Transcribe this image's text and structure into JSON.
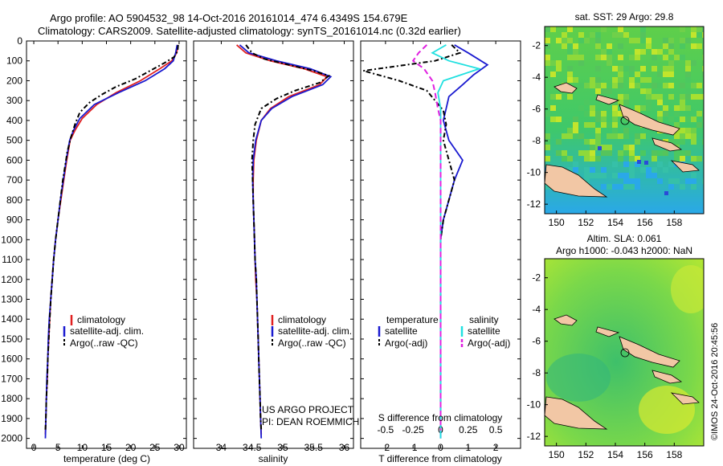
{
  "header": {
    "line1": "Argo profile: AO 5904532_98 14-Oct-2016 20161014_474 6.4349S 154.679E",
    "line2": "Climatology: CARS2009. Satellite-adjusted climatology: synTS_20161014.nc (0.32d earlier)"
  },
  "colors": {
    "climatology": "#e02020",
    "satellite": "#1a1ad0",
    "argo": "#000000",
    "sal_satellite": "#20e0e0",
    "sal_argo": "#e020e0"
  },
  "chart_data": [
    {
      "type": "line",
      "name": "temperature",
      "xlabel": "temperature (deg C)",
      "ylabel": "",
      "xlim": [
        -1.5,
        31.5
      ],
      "ylim": [
        2050,
        0
      ],
      "xticks": [
        0,
        5,
        10,
        15,
        20,
        25,
        30
      ],
      "yticks": [
        0,
        100,
        200,
        300,
        400,
        500,
        600,
        700,
        800,
        900,
        1000,
        1100,
        1200,
        1300,
        1400,
        1500,
        1600,
        1700,
        1800,
        1900,
        2000
      ],
      "series": [
        {
          "name": "climatology",
          "color": "#e02020",
          "dash": "",
          "points": [
            [
              29.8,
              20
            ],
            [
              29.5,
              60
            ],
            [
              28.5,
              100
            ],
            [
              26,
              140
            ],
            [
              22,
              200
            ],
            [
              17,
              260
            ],
            [
              13,
              320
            ],
            [
              10,
              390
            ],
            [
              8.5,
              450
            ],
            [
              7.5,
              500
            ],
            [
              6.8,
              600
            ],
            [
              6.2,
              700
            ],
            [
              5.6,
              800
            ],
            [
              5.0,
              900
            ],
            [
              4.5,
              1000
            ],
            [
              4.1,
              1100
            ],
            [
              3.8,
              1200
            ],
            [
              3.5,
              1300
            ],
            [
              3.3,
              1400
            ],
            [
              3.1,
              1500
            ],
            [
              2.9,
              1600
            ],
            [
              2.8,
              1700
            ],
            [
              2.6,
              1800
            ],
            [
              2.5,
              1900
            ],
            [
              2.4,
              1980
            ]
          ]
        },
        {
          "name": "satellite-adj. clim.",
          "color": "#1a1ad0",
          "dash": "",
          "points": [
            [
              29.6,
              20
            ],
            [
              29.3,
              60
            ],
            [
              28.8,
              100
            ],
            [
              27,
              140
            ],
            [
              23,
              200
            ],
            [
              17.5,
              260
            ],
            [
              12.5,
              320
            ],
            [
              9.5,
              390
            ],
            [
              8.2,
              450
            ],
            [
              7.4,
              500
            ],
            [
              6.7,
              600
            ],
            [
              6.1,
              700
            ],
            [
              5.5,
              800
            ],
            [
              5.0,
              900
            ],
            [
              4.5,
              1000
            ],
            [
              4.1,
              1100
            ],
            [
              3.8,
              1200
            ],
            [
              3.5,
              1300
            ],
            [
              3.2,
              1400
            ],
            [
              3.0,
              1500
            ],
            [
              2.9,
              1600
            ],
            [
              2.7,
              1700
            ],
            [
              2.6,
              1800
            ],
            [
              2.5,
              1900
            ],
            [
              2.4,
              2000
            ]
          ]
        },
        {
          "name": "Argo(..raw -QC)",
          "color": "#000000",
          "dash": "6,3,2,3",
          "points": [
            [
              29.8,
              20
            ],
            [
              29.7,
              50
            ],
            [
              29,
              80
            ],
            [
              27,
              110
            ],
            [
              24,
              150
            ],
            [
              21,
              190
            ],
            [
              17,
              230
            ],
            [
              14,
              270
            ],
            [
              11.5,
              310
            ],
            [
              9.5,
              360
            ],
            [
              8.5,
              420
            ],
            [
              7.6,
              490
            ],
            [
              6.9,
              560
            ],
            [
              6.4,
              640
            ],
            [
              6.0,
              700
            ],
            [
              5.5,
              800
            ],
            [
              5.0,
              900
            ],
            [
              4.5,
              1000
            ],
            [
              4.1,
              1100
            ],
            [
              3.8,
              1200
            ],
            [
              3.5,
              1300
            ],
            [
              3.3,
              1400
            ],
            [
              3.1,
              1500
            ],
            [
              2.9,
              1600
            ],
            [
              2.8,
              1700
            ],
            [
              2.6,
              1800
            ],
            [
              2.5,
              1900
            ],
            [
              2.4,
              1960
            ]
          ]
        }
      ],
      "legend": [
        "climatology",
        "satellite-adj. clim.",
        "Argo(..raw -QC)"
      ]
    },
    {
      "type": "line",
      "name": "salinity",
      "xlabel": "salinity",
      "ylabel": "",
      "xlim": [
        33.55,
        36.15
      ],
      "ylim": [
        2050,
        0
      ],
      "xticks": [
        34,
        34.5,
        35,
        35.5,
        36
      ],
      "series": [
        {
          "name": "climatology",
          "color": "#e02020",
          "dash": "",
          "points": [
            [
              34.25,
              20
            ],
            [
              34.4,
              60
            ],
            [
              34.8,
              100
            ],
            [
              35.35,
              140
            ],
            [
              35.72,
              180
            ],
            [
              35.6,
              220
            ],
            [
              35.1,
              280
            ],
            [
              34.8,
              340
            ],
            [
              34.65,
              400
            ],
            [
              34.57,
              500
            ],
            [
              34.53,
              600
            ],
            [
              34.52,
              700
            ],
            [
              34.52,
              800
            ],
            [
              34.53,
              900
            ],
            [
              34.54,
              1000
            ],
            [
              34.55,
              1100
            ],
            [
              34.56,
              1200
            ],
            [
              34.58,
              1300
            ],
            [
              34.59,
              1400
            ],
            [
              34.6,
              1500
            ],
            [
              34.61,
              1600
            ],
            [
              34.62,
              1700
            ],
            [
              34.63,
              1800
            ],
            [
              34.64,
              1900
            ],
            [
              34.65,
              1980
            ]
          ]
        },
        {
          "name": "satellite-adj. clim.",
          "color": "#1a1ad0",
          "dash": "",
          "points": [
            [
              34.3,
              20
            ],
            [
              34.45,
              60
            ],
            [
              34.9,
              100
            ],
            [
              35.45,
              140
            ],
            [
              35.78,
              180
            ],
            [
              35.65,
              220
            ],
            [
              35.15,
              280
            ],
            [
              34.82,
              340
            ],
            [
              34.65,
              400
            ],
            [
              34.56,
              500
            ],
            [
              34.52,
              600
            ],
            [
              34.51,
              700
            ],
            [
              34.52,
              800
            ],
            [
              34.53,
              900
            ],
            [
              34.54,
              1000
            ],
            [
              34.55,
              1100
            ],
            [
              34.57,
              1200
            ],
            [
              34.58,
              1300
            ],
            [
              34.59,
              1400
            ],
            [
              34.6,
              1500
            ],
            [
              34.61,
              1600
            ],
            [
              34.62,
              1700
            ],
            [
              34.63,
              1800
            ],
            [
              34.64,
              1900
            ],
            [
              34.65,
              2000
            ]
          ]
        },
        {
          "name": "Argo(..raw -QC)",
          "color": "#000000",
          "dash": "6,3,2,3",
          "points": [
            [
              34.4,
              20
            ],
            [
              34.5,
              60
            ],
            [
              34.7,
              90
            ],
            [
              35.1,
              120
            ],
            [
              35.5,
              150
            ],
            [
              35.75,
              175
            ],
            [
              35.6,
              210
            ],
            [
              35.2,
              250
            ],
            [
              34.9,
              290
            ],
            [
              34.65,
              340
            ],
            [
              34.55,
              420
            ],
            [
              34.52,
              500
            ],
            [
              34.5,
              600
            ],
            [
              34.51,
              700
            ],
            [
              34.52,
              800
            ],
            [
              34.53,
              900
            ],
            [
              34.54,
              1000
            ],
            [
              34.55,
              1100
            ],
            [
              34.57,
              1200
            ],
            [
              34.58,
              1300
            ],
            [
              34.59,
              1400
            ],
            [
              34.6,
              1500
            ],
            [
              34.61,
              1600
            ],
            [
              34.62,
              1700
            ],
            [
              34.63,
              1800
            ],
            [
              34.64,
              1900
            ],
            [
              34.65,
              1960
            ]
          ]
        }
      ],
      "legend": [
        "climatology",
        "satellite-adj. clim.",
        "Argo(..raw -QC)"
      ],
      "annotations": [
        "US ARGO PROJECT",
        "PI: DEAN ROEMMICH"
      ]
    },
    {
      "type": "line",
      "name": "difference",
      "xlabel": "T difference from climatology",
      "xlabel_top": "S difference from climatology",
      "xlim": [
        -2.9,
        2.9
      ],
      "ylim": [
        2050,
        0
      ],
      "xticks": [
        -2,
        -1,
        0,
        1,
        2
      ],
      "xticks_top_labels": [
        "-0.5",
        "-0.25",
        "0",
        "0.25",
        "0.5"
      ],
      "xticks_top_pos": [
        -2,
        -1,
        0,
        1,
        2
      ],
      "series": [
        {
          "name": "temperature satellite",
          "color": "#1a1ad0",
          "dash": "",
          "points": [
            [
              0.5,
              20
            ],
            [
              1.0,
              60
            ],
            [
              1.7,
              120
            ],
            [
              1.2,
              170
            ],
            [
              0.8,
              220
            ],
            [
              0.3,
              280
            ],
            [
              0.2,
              340
            ],
            [
              0.1,
              400
            ],
            [
              0.3,
              500
            ],
            [
              0.8,
              600
            ],
            [
              0.5,
              700
            ],
            [
              0.3,
              800
            ],
            [
              0.1,
              900
            ],
            [
              0,
              1000
            ],
            [
              0,
              1500
            ],
            [
              0,
              2000
            ]
          ]
        },
        {
          "name": "temperature Argo(-adj)",
          "color": "#000000",
          "dash": "6,3,2,3",
          "points": [
            [
              0.4,
              20
            ],
            [
              0.7,
              60
            ],
            [
              -0.2,
              100
            ],
            [
              -2.8,
              150
            ],
            [
              -1.5,
              200
            ],
            [
              -0.5,
              250
            ],
            [
              -0.2,
              300
            ],
            [
              0.1,
              350
            ],
            [
              0.2,
              420
            ],
            [
              0.1,
              500
            ],
            [
              0.3,
              600
            ],
            [
              0.5,
              700
            ],
            [
              0.3,
              800
            ],
            [
              0.1,
              900
            ],
            [
              0,
              1000
            ],
            [
              0,
              1500
            ],
            [
              0,
              1960
            ]
          ]
        },
        {
          "name": "salinity satellite",
          "color": "#20e0e0",
          "dash": "",
          "points": [
            [
              0.2,
              20
            ],
            [
              -0.3,
              60
            ],
            [
              0.3,
              100
            ],
            [
              1.4,
              140
            ],
            [
              0.1,
              200
            ],
            [
              -0.1,
              260
            ],
            [
              0,
              340
            ],
            [
              0,
              500
            ],
            [
              0,
              1000
            ],
            [
              0,
              1500
            ],
            [
              0,
              2000
            ]
          ]
        },
        {
          "name": "salinity Argo(-adj)",
          "color": "#e020e0",
          "dash": "7,4",
          "points": [
            [
              -0.5,
              20
            ],
            [
              -0.8,
              60
            ],
            [
              -1.0,
              100
            ],
            [
              -0.6,
              140
            ],
            [
              -0.3,
              200
            ],
            [
              -0.2,
              260
            ],
            [
              -0.1,
              340
            ],
            [
              0,
              400
            ],
            [
              0,
              500
            ],
            [
              0,
              1000
            ],
            [
              0,
              1500
            ],
            [
              0,
              1960
            ]
          ]
        }
      ],
      "legend_titles": [
        "temperature",
        "salinity"
      ],
      "legend": [
        "satellite",
        "Argo(-adj)",
        "satellite",
        "Argo(-adj)"
      ]
    }
  ],
  "map_sst": {
    "title": "sat. SST: 29 Argo: 29.8",
    "xticks": [
      "150",
      "152",
      "154",
      "156",
      "158"
    ],
    "yticks": [
      "-2",
      "-4",
      "-6",
      "-8",
      "-10",
      "-12"
    ]
  },
  "map_sla": {
    "title1": "Altim. SLA: 0.061",
    "title2": "Argo h1000: -0.043 h2000: NaN",
    "xticks": [
      "150",
      "152",
      "154",
      "156",
      "158"
    ],
    "yticks": [
      "-2",
      "-4",
      "-6",
      "-8",
      "-10",
      "-12"
    ]
  },
  "credit": "©IMOS 24-Oct-2016 20:45:56"
}
